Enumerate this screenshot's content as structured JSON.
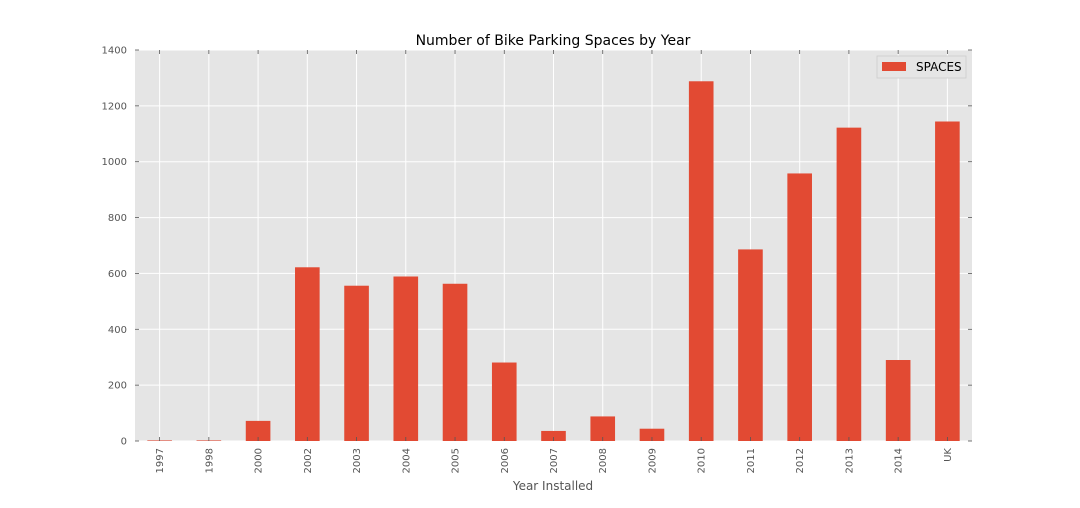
{
  "chart_data": {
    "type": "bar",
    "title": "Number of Bike Parking Spaces by Year",
    "xlabel": "Year Installed",
    "ylabel": "",
    "categories": [
      "1997",
      "1998",
      "2000",
      "2002",
      "2003",
      "2004",
      "2005",
      "2006",
      "2007",
      "2008",
      "2009",
      "2010",
      "2011",
      "2012",
      "2013",
      "2014",
      "UK"
    ],
    "series": [
      {
        "name": "SPACES",
        "values": [
          2,
          2,
          72,
          622,
          556,
          589,
          563,
          281,
          36,
          88,
          44,
          1288,
          686,
          958,
          1122,
          290,
          1144
        ]
      }
    ],
    "ylim": [
      0,
      1400
    ],
    "yticks": [
      0,
      200,
      400,
      600,
      800,
      1000,
      1200,
      1400
    ],
    "grid": true,
    "legend_position": "top-right",
    "colors": {
      "bar": "#E24A33",
      "plot_background": "#E5E5E5",
      "grid": "#FFFFFF"
    }
  }
}
